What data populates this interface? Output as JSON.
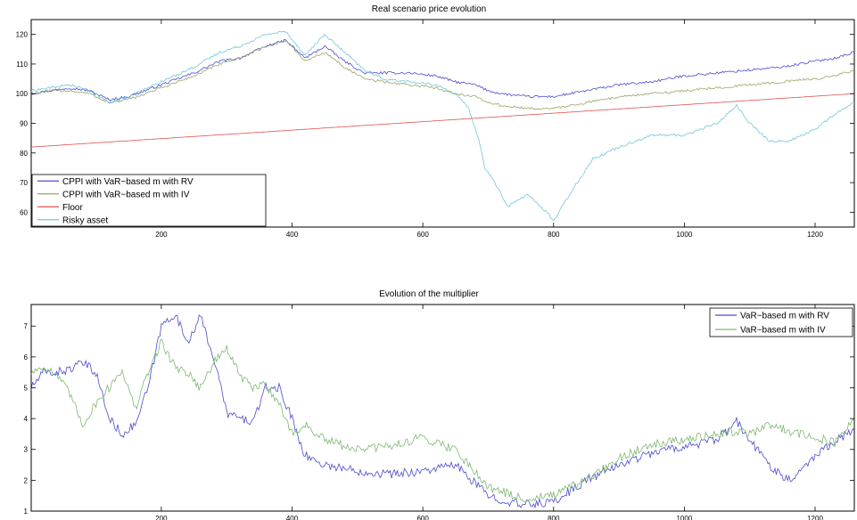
{
  "chart_data": [
    {
      "type": "line",
      "title": "Real scenario price evolution",
      "xlabel": "",
      "ylabel": "",
      "xlim": [
        1,
        1260
      ],
      "ylim": [
        55,
        125
      ],
      "xticks": [
        200,
        400,
        600,
        800,
        1000,
        1200
      ],
      "yticks": [
        60,
        70,
        80,
        90,
        100,
        110,
        120
      ],
      "grid": false,
      "legend_position": "bottom-left",
      "series": [
        {
          "name": "CPPI with VaR−based m with RV",
          "color": "#4b4bd0",
          "x": [
            1,
            30,
            60,
            90,
            120,
            150,
            200,
            250,
            290,
            320,
            360,
            390,
            420,
            450,
            480,
            510,
            540,
            580,
            620,
            650,
            680,
            700,
            720,
            760,
            800,
            850,
            900,
            950,
            1000,
            1050,
            1100,
            1150,
            1200,
            1230,
            1260
          ],
          "y": [
            100,
            101,
            102,
            101,
            98,
            99,
            103,
            107,
            111,
            112,
            116,
            118,
            112,
            116,
            111,
            107,
            107,
            107,
            106,
            104,
            103,
            101,
            100,
            99,
            99,
            101,
            103,
            104,
            106,
            107,
            108,
            109,
            111,
            112,
            114
          ]
        },
        {
          "name": "CPPI with VaR−based m with IV",
          "color": "#9aa56a",
          "x": [
            1,
            30,
            60,
            90,
            120,
            150,
            200,
            250,
            290,
            320,
            360,
            390,
            420,
            450,
            480,
            510,
            540,
            580,
            620,
            650,
            680,
            700,
            720,
            760,
            800,
            850,
            900,
            950,
            1000,
            1050,
            1100,
            1150,
            1200,
            1230,
            1260
          ],
          "y": [
            100,
            101,
            101,
            100,
            97,
            98,
            102,
            106,
            110,
            112,
            116,
            118,
            111,
            114,
            109,
            105,
            104,
            103,
            102,
            100,
            99,
            97,
            96,
            95,
            95,
            97,
            99,
            100,
            101,
            102,
            103,
            104,
            105,
            106,
            108
          ]
        },
        {
          "name": "Floor",
          "color": "#e05050",
          "x": [
            1,
            1260
          ],
          "y": [
            82,
            100
          ]
        },
        {
          "name": "Risky asset",
          "color": "#70c8d8",
          "x": [
            1,
            30,
            60,
            90,
            120,
            150,
            200,
            250,
            290,
            320,
            360,
            390,
            420,
            450,
            480,
            510,
            540,
            580,
            620,
            650,
            670,
            685,
            695,
            710,
            730,
            760,
            790,
            800,
            830,
            860,
            900,
            950,
            1000,
            1050,
            1080,
            1100,
            1130,
            1160,
            1200,
            1230,
            1260
          ],
          "y": [
            101,
            102,
            103,
            101,
            97,
            99,
            104,
            109,
            114,
            116,
            120,
            121,
            113,
            120,
            114,
            108,
            105,
            104,
            103,
            100,
            95,
            85,
            75,
            70,
            62,
            66,
            60,
            57,
            68,
            78,
            82,
            86,
            86,
            90,
            96,
            90,
            84,
            84,
            88,
            93,
            97
          ]
        }
      ]
    },
    {
      "type": "line",
      "title": "Evolution of the multiplier",
      "xlabel": "",
      "ylabel": "",
      "xlim": [
        1,
        1260
      ],
      "ylim": [
        1,
        7.7
      ],
      "xticks": [
        200,
        400,
        600,
        800,
        1000,
        1200
      ],
      "yticks": [
        1,
        2,
        3,
        4,
        5,
        6,
        7
      ],
      "grid": false,
      "legend_position": "top-right",
      "series": [
        {
          "name": "VaR−based m with RV",
          "color": "#4b4bd0",
          "x": [
            1,
            20,
            40,
            60,
            80,
            100,
            120,
            140,
            160,
            180,
            200,
            220,
            240,
            260,
            280,
            300,
            320,
            340,
            360,
            380,
            400,
            420,
            450,
            500,
            550,
            600,
            650,
            700,
            750,
            800,
            850,
            900,
            950,
            1000,
            1050,
            1080,
            1100,
            1130,
            1160,
            1200,
            1230,
            1260
          ],
          "y": [
            5,
            5.5,
            5.5,
            5.6,
            5.8,
            5.5,
            4.0,
            3.5,
            3.8,
            5.0,
            7.0,
            7.4,
            6.5,
            7.3,
            6.0,
            4.2,
            4.0,
            3.9,
            5.0,
            5.0,
            4.0,
            2.8,
            2.5,
            2.3,
            2.2,
            2.3,
            2.5,
            1.5,
            1.2,
            1.3,
            2.0,
            2.5,
            2.9,
            3.1,
            3.3,
            3.9,
            3.3,
            2.5,
            2.0,
            2.8,
            3.3,
            3.6
          ]
        },
        {
          "name": "VaR−based m with IV",
          "color": "#7cb870",
          "x": [
            1,
            20,
            40,
            60,
            80,
            100,
            120,
            140,
            160,
            180,
            200,
            220,
            240,
            260,
            280,
            300,
            320,
            340,
            360,
            380,
            400,
            420,
            450,
            500,
            550,
            600,
            650,
            700,
            750,
            800,
            850,
            900,
            950,
            1000,
            1050,
            1080,
            1100,
            1130,
            1160,
            1200,
            1230,
            1260
          ],
          "y": [
            5.5,
            5.7,
            5.4,
            4.8,
            3.8,
            4.5,
            5.0,
            5.6,
            4.3,
            5.5,
            6.5,
            5.7,
            5.5,
            5.0,
            5.8,
            6.3,
            5.4,
            5.0,
            5.1,
            4.5,
            3.5,
            3.8,
            3.3,
            3.0,
            3.1,
            3.4,
            3.0,
            1.8,
            1.4,
            1.5,
            2.0,
            2.7,
            3.2,
            3.3,
            3.5,
            3.6,
            3.5,
            3.8,
            3.6,
            3.4,
            3.2,
            4.0
          ]
        }
      ]
    }
  ]
}
